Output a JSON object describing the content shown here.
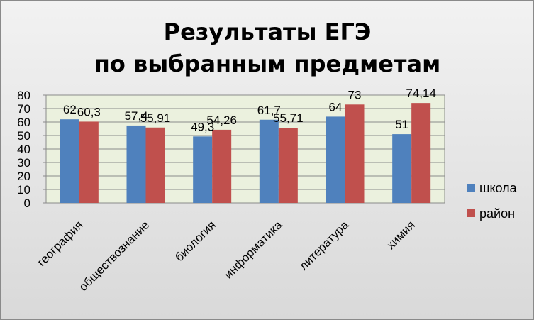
{
  "chart_data": {
    "type": "bar",
    "title": "Результаты ЕГЭ",
    "subtitle": "по выбранным предметам",
    "categories": [
      "география",
      "обществознание",
      "биология",
      "информатика",
      "литература",
      "химия"
    ],
    "series": [
      {
        "name": "школа",
        "values": [
          62,
          57.4,
          49.3,
          61.7,
          64,
          51
        ],
        "labels": [
          "62",
          "57,4",
          "49,3",
          "61,7",
          "64",
          "51"
        ],
        "color": "#4f81bd"
      },
      {
        "name": "район",
        "values": [
          60.3,
          55.91,
          54.26,
          55.71,
          73,
          74.14
        ],
        "labels": [
          "60,3",
          "55,91",
          "54,26",
          "55,71",
          "73",
          "74,14"
        ],
        "color": "#c0504d"
      }
    ],
    "ylim": [
      0,
      80
    ],
    "yticks": [
      0,
      10,
      20,
      30,
      40,
      50,
      60,
      70,
      80
    ],
    "grid": true,
    "plot_background": "#ebf1de",
    "legend_position": "right"
  }
}
